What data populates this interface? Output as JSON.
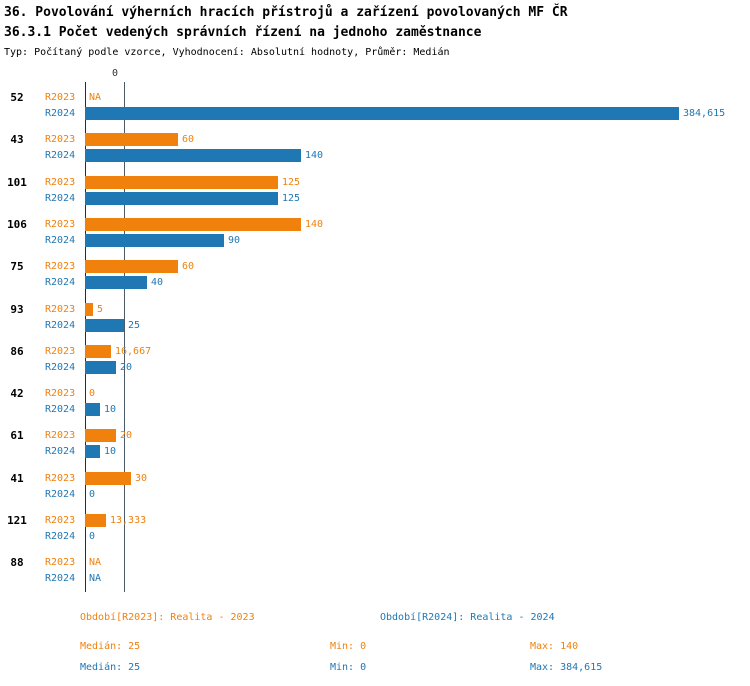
{
  "title_line1": "36. Povolování výherních hracích přístrojů a zařízení povolovaných MF ČR",
  "title_line2": "36.3.1 Počet vedených správních řízení na jednoho zaměstnance",
  "meta": "Typ: Počítaný podle vzorce, Vyhodnocení: Absolutní hodnoty, Průměr: Medián",
  "x_axis": {
    "tick_zero": "0"
  },
  "colors": {
    "r2023": "#F0810D",
    "r2024": "#1F77B4"
  },
  "chart_data": {
    "type": "bar",
    "orientation": "horizontal",
    "x_max": 384.615,
    "median_line": 25,
    "categories": [
      "52",
      "43",
      "101",
      "106",
      "75",
      "93",
      "86",
      "42",
      "61",
      "41",
      "121",
      "88"
    ],
    "series": [
      {
        "name": "R2023",
        "color": "#F0810D",
        "values": [
          null,
          60,
          125,
          140,
          60,
          5,
          16.667,
          0,
          20,
          30,
          13.333,
          null
        ],
        "labels": [
          "NA",
          "60",
          "125",
          "140",
          "60",
          "5",
          "16,667",
          "0",
          "20",
          "30",
          "13,333",
          "NA"
        ]
      },
      {
        "name": "R2024",
        "color": "#1F77B4",
        "values": [
          384.615,
          140,
          125,
          90,
          40,
          25,
          20,
          10,
          10,
          0,
          0,
          null
        ],
        "labels": [
          "384,615",
          "140",
          "125",
          "90",
          "40",
          "25",
          "20",
          "10",
          "10",
          "0",
          "0",
          "NA"
        ]
      }
    ]
  },
  "legend": {
    "r2023": "Období[R2023]: Realita - 2023",
    "r2024": "Období[R2024]: Realita - 2024"
  },
  "stats": {
    "r2023": {
      "median": "Medián: 25",
      "min": "Min: 0",
      "max": "Max: 140"
    },
    "r2024": {
      "median": "Medián: 25",
      "min": "Min: 0",
      "max": "Max: 384,615"
    }
  }
}
